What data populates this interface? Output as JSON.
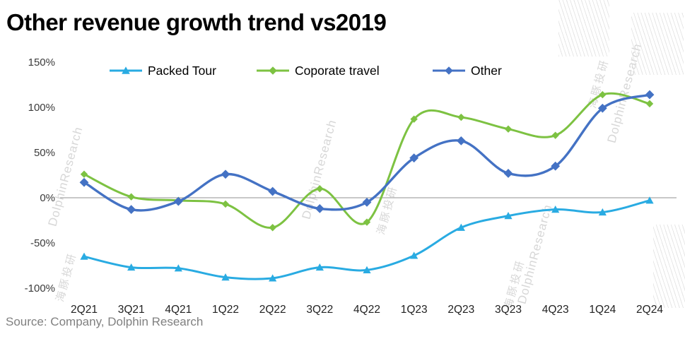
{
  "title": "Other revenue growth trend vs2019",
  "source": "Source: Company, Dolphin Research",
  "watermark": {
    "latin": "DolphinResearch",
    "cjk": "海豚投研"
  },
  "chart_data": {
    "type": "line",
    "smooth": true,
    "grid": false,
    "legend_position": "top",
    "title": "Other revenue growth trend vs2019",
    "xlabel": "",
    "ylabel": "",
    "ylim": [
      -100,
      150
    ],
    "categories": [
      "2Q21",
      "3Q21",
      "4Q21",
      "1Q22",
      "2Q22",
      "3Q22",
      "4Q22",
      "1Q23",
      "2Q23",
      "3Q23",
      "4Q23",
      "1Q24",
      "2Q24"
    ],
    "yticks": [
      {
        "value": 150,
        "label": "150%"
      },
      {
        "value": 100,
        "label": "100%"
      },
      {
        "value": 50,
        "label": "50%"
      },
      {
        "value": 0,
        "label": "0%"
      },
      {
        "value": -50,
        "label": "-50%"
      },
      {
        "value": -100,
        "label": "-100%"
      }
    ],
    "series": [
      {
        "name": "Packed Tour",
        "color": "#29ABE2",
        "marker": "triangle",
        "values": [
          -65,
          -77,
          -78,
          -88,
          -89,
          -77,
          -80,
          -64,
          -33,
          -20,
          -13,
          -16,
          -3
        ]
      },
      {
        "name": "Coporate travel",
        "color": "#7DC242",
        "marker": "diamond",
        "values": [
          26,
          1,
          -3,
          -7,
          -33,
          10,
          -27,
          87,
          89,
          76,
          69,
          114,
          104
        ]
      },
      {
        "name": "Other",
        "color": "#4472C4",
        "marker": "diamond",
        "values": [
          17,
          -13,
          -4,
          26,
          7,
          -12,
          -5,
          44,
          63,
          27,
          35,
          99,
          114
        ]
      }
    ],
    "axis_color": "#A6A6A6",
    "label_color": "#3b3b3b"
  }
}
